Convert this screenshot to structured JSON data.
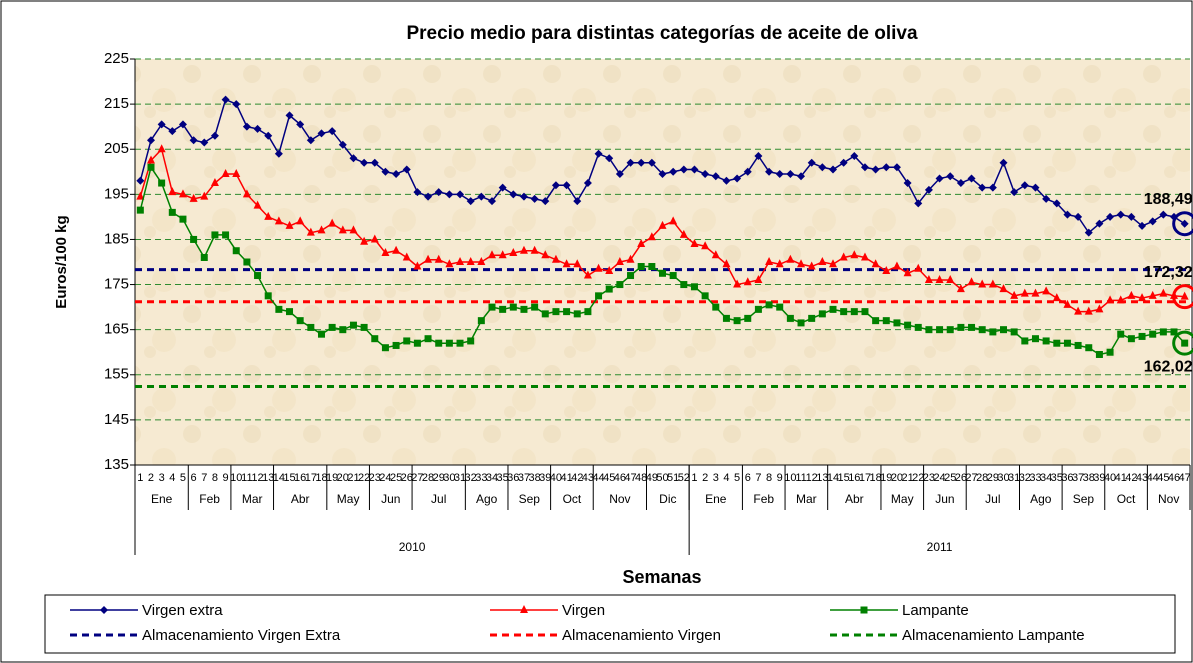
{
  "chart_data": {
    "type": "line",
    "title": "Precio medio para distintas categorías de aceite de oliva",
    "y_label": "Euros/100 kg",
    "x_label": "Semanas",
    "categories": [
      "1",
      "2",
      "3",
      "4",
      "5",
      "6",
      "7",
      "8",
      "9",
      "10",
      "11",
      "12",
      "13",
      "14",
      "15",
      "16",
      "17",
      "18",
      "19",
      "20",
      "21",
      "22",
      "23",
      "24",
      "25",
      "26",
      "27",
      "28",
      "29",
      "30",
      "31",
      "32",
      "33",
      "34",
      "35",
      "36",
      "37",
      "38",
      "39",
      "40",
      "41",
      "42",
      "43",
      "44",
      "45",
      "46",
      "47",
      "48",
      "49",
      "50",
      "51",
      "52",
      "1",
      "2",
      "3",
      "4",
      "5",
      "6",
      "7",
      "8",
      "9",
      "10",
      "11",
      "12",
      "13",
      "14",
      "15",
      "16",
      "17",
      "18",
      "19",
      "20",
      "21",
      "22",
      "23",
      "24",
      "25",
      "26",
      "27",
      "28",
      "29",
      "30",
      "31",
      "32",
      "33",
      "34",
      "35",
      "36",
      "37",
      "38",
      "39",
      "40",
      "41",
      "42",
      "43",
      "44",
      "45",
      "46",
      "47"
    ],
    "months": [
      {
        "label": "Ene",
        "weeks": 5
      },
      {
        "label": "Feb",
        "weeks": 4
      },
      {
        "label": "Mar",
        "weeks": 4
      },
      {
        "label": "Abr",
        "weeks": 5
      },
      {
        "label": "May",
        "weeks": 4
      },
      {
        "label": "Jun",
        "weeks": 4
      },
      {
        "label": "Jul",
        "weeks": 5
      },
      {
        "label": "Ago",
        "weeks": 4
      },
      {
        "label": "Sep",
        "weeks": 4
      },
      {
        "label": "Oct",
        "weeks": 4
      },
      {
        "label": "Nov",
        "weeks": 5
      },
      {
        "label": "Dic",
        "weeks": 4
      },
      {
        "label": "Ene",
        "weeks": 5
      },
      {
        "label": "Feb",
        "weeks": 4
      },
      {
        "label": "Mar",
        "weeks": 4
      },
      {
        "label": "Abr",
        "weeks": 5
      },
      {
        "label": "May",
        "weeks": 4
      },
      {
        "label": "Jun",
        "weeks": 4
      },
      {
        "label": "Jul",
        "weeks": 5
      },
      {
        "label": "Ago",
        "weeks": 4
      },
      {
        "label": "Sep",
        "weeks": 4
      },
      {
        "label": "Oct",
        "weeks": 4
      },
      {
        "label": "Nov",
        "weeks": 4
      }
    ],
    "years": [
      {
        "label": "2010",
        "weeks": 52
      },
      {
        "label": "2011",
        "weeks": 47
      }
    ],
    "ylim": [
      135,
      225
    ],
    "yticks": [
      135,
      145,
      155,
      165,
      175,
      185,
      195,
      205,
      215,
      225
    ],
    "grid": true,
    "series": [
      {
        "name": "Virgen extra",
        "color": "#000080",
        "marker": "diamond",
        "last_value_label": "188,49",
        "values": [
          198,
          207,
          210.5,
          209,
          210.5,
          207,
          206.5,
          208,
          216,
          215,
          210,
          209.5,
          208,
          204,
          212.5,
          210.5,
          207,
          208.5,
          209,
          206,
          203,
          202,
          202,
          200,
          199.5,
          200.5,
          195.5,
          194.5,
          195.5,
          195,
          195,
          193.5,
          194.5,
          193.5,
          196.5,
          195,
          194.5,
          194,
          193.5,
          197,
          197,
          193.5,
          197.5,
          204,
          203,
          199.5,
          202,
          202,
          202,
          199.5,
          200,
          200.5,
          200.5,
          199.5,
          199,
          198,
          198.5,
          200,
          203.5,
          200,
          199.5,
          199.5,
          199,
          202,
          201,
          200.5,
          202,
          203.5,
          201,
          200.5,
          201,
          201,
          197.5,
          193,
          196,
          198.5,
          199,
          197.5,
          198.5,
          196.5,
          196.5,
          202,
          195.5,
          197,
          196.5,
          194,
          193,
          190.5,
          190,
          186.5,
          188.5,
          190,
          190.5,
          190,
          188,
          189,
          190.5,
          190,
          188.49
        ]
      },
      {
        "name": "Virgen",
        "color": "#ff0000",
        "marker": "triangle",
        "last_value_label": "172,32",
        "values": [
          194.5,
          202.5,
          205,
          195.5,
          195,
          194,
          194.5,
          197.5,
          199.5,
          199.5,
          195,
          192.5,
          190,
          189,
          188,
          189,
          186.5,
          187,
          188.5,
          187,
          187,
          184.5,
          185,
          182,
          182.5,
          181,
          179,
          180.5,
          180.5,
          179.5,
          180,
          180,
          180,
          181.5,
          181.5,
          182,
          182.5,
          182.5,
          181.5,
          180.5,
          179.5,
          179.5,
          177,
          178.5,
          178,
          180,
          180.5,
          184,
          185.5,
          188,
          189,
          186,
          184,
          183.5,
          181.5,
          179.5,
          175,
          175.5,
          176,
          180,
          179.5,
          180.5,
          179.5,
          179,
          180,
          179.5,
          181,
          181.5,
          181,
          179.5,
          178,
          179,
          177.5,
          178.5,
          176,
          176,
          176,
          174,
          175.5,
          175,
          175,
          174,
          172.5,
          173,
          173,
          173.5,
          172,
          170.5,
          169,
          169,
          169.5,
          171.5,
          171.5,
          172.5,
          172,
          172.5,
          173,
          172.5,
          172.32
        ]
      },
      {
        "name": "Lampante",
        "color": "#008000",
        "marker": "square",
        "last_value_label": "162,02",
        "values": [
          191.5,
          201,
          197.5,
          191,
          189.5,
          185,
          181,
          186,
          186,
          182.5,
          180,
          177,
          172.5,
          169.5,
          169,
          167,
          165.5,
          164,
          165.5,
          165,
          166,
          165.5,
          163,
          161,
          161.5,
          162.5,
          162,
          163,
          162,
          162,
          162,
          162.5,
          167,
          170,
          169.5,
          170,
          169.5,
          170,
          168.5,
          169,
          169,
          168.5,
          169,
          172.5,
          174,
          175,
          177,
          179,
          179,
          177.5,
          177,
          175,
          174.5,
          172.5,
          170,
          167.5,
          167,
          167.5,
          169.5,
          170.5,
          170,
          167.5,
          166.5,
          167.5,
          168.5,
          169.5,
          169,
          169,
          169,
          167,
          167,
          166.5,
          166,
          165.5,
          165,
          165,
          165,
          165.5,
          165.5,
          165,
          164.5,
          165,
          164.5,
          162.5,
          163,
          162.5,
          162,
          162,
          161.5,
          161,
          159.5,
          160,
          164,
          163,
          163.5,
          164,
          164.5,
          164.5,
          162.02
        ]
      }
    ],
    "reference_lines": [
      {
        "name": "Almacenamiento Virgen Extra",
        "color": "#000080",
        "value": 178.3
      },
      {
        "name": "Almacenamiento Virgen",
        "color": "#ff0000",
        "value": 171.2
      },
      {
        "name": "Almacenamiento Lampante",
        "color": "#008000",
        "value": 152.4
      }
    ]
  }
}
